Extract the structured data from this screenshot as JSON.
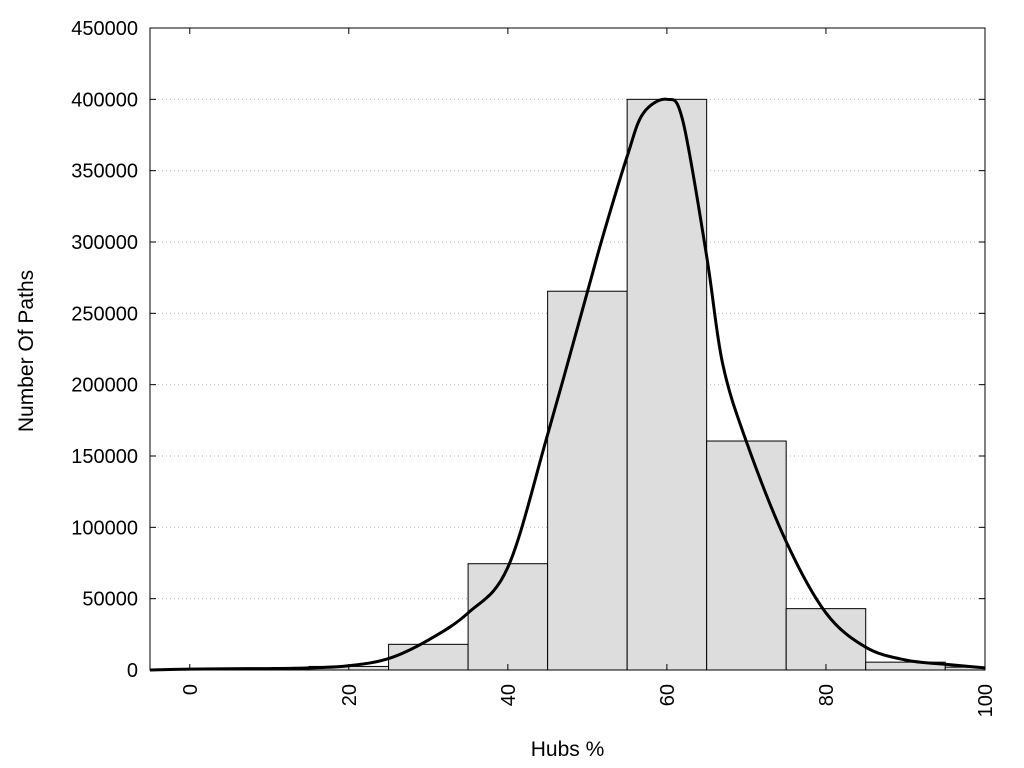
{
  "chart_data": {
    "type": "bar",
    "xlabel": "Hubs %",
    "ylabel": "Number Of Paths",
    "xlim": [
      -5,
      100
    ],
    "ylim": [
      0,
      450000
    ],
    "x_ticks": [
      0,
      20,
      40,
      60,
      80,
      100
    ],
    "y_ticks": [
      0,
      50000,
      100000,
      150000,
      200000,
      250000,
      300000,
      350000,
      400000,
      450000
    ],
    "grid": "horizontal-dotted",
    "bar_width": 10,
    "bars": {
      "x": [
        0,
        10,
        20,
        30,
        40,
        50,
        60,
        70,
        80,
        90,
        100
      ],
      "values": [
        500,
        700,
        2500,
        18000,
        74500,
        265500,
        400000,
        160500,
        43000,
        5500,
        2000
      ]
    },
    "curve": {
      "x": [
        -5,
        0,
        5,
        10,
        15,
        20,
        25,
        30,
        35,
        40,
        45,
        50,
        52,
        55,
        57,
        60,
        62,
        65,
        67,
        70,
        75,
        80,
        85,
        90,
        95,
        100
      ],
      "y": [
        0,
        600,
        900,
        1000,
        1500,
        3000,
        8000,
        21000,
        40000,
        72000,
        165000,
        265000,
        305000,
        360000,
        390000,
        400000,
        385000,
        290000,
        215000,
        160000,
        90000,
        40000,
        16000,
        7000,
        4000,
        1500
      ]
    },
    "colors": {
      "bar_fill": "#dddddd",
      "bar_stroke": "#000000",
      "curve": "#000000",
      "grid": "#bbbbbb"
    }
  }
}
